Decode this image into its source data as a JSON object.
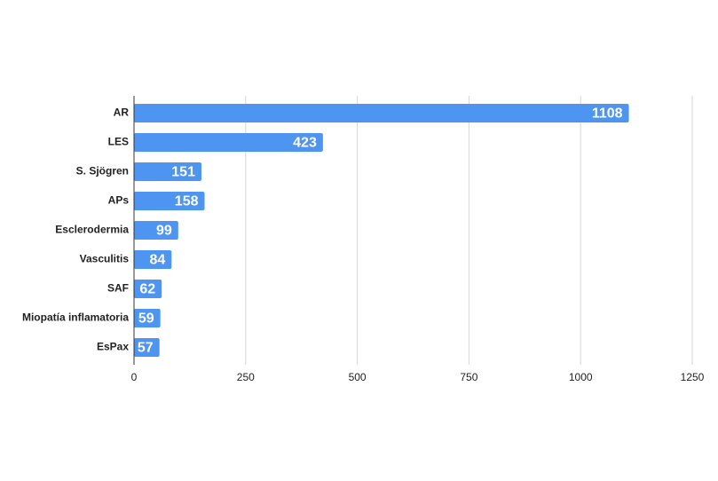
{
  "chart_data": {
    "type": "hbar",
    "categories": [
      "AR",
      "LES",
      "S. Sjögren",
      "APs",
      "Esclerodermia",
      "Vasculitis",
      "SAF",
      "Miopatía inflamatoria",
      "EsPax"
    ],
    "values": [
      1108,
      423,
      151,
      158,
      99,
      84,
      62,
      59,
      57
    ],
    "color": "#4e95f2",
    "xlim": [
      0,
      1250
    ],
    "xticks": [
      0,
      250,
      500,
      750,
      1000,
      1250
    ],
    "grid": true
  }
}
